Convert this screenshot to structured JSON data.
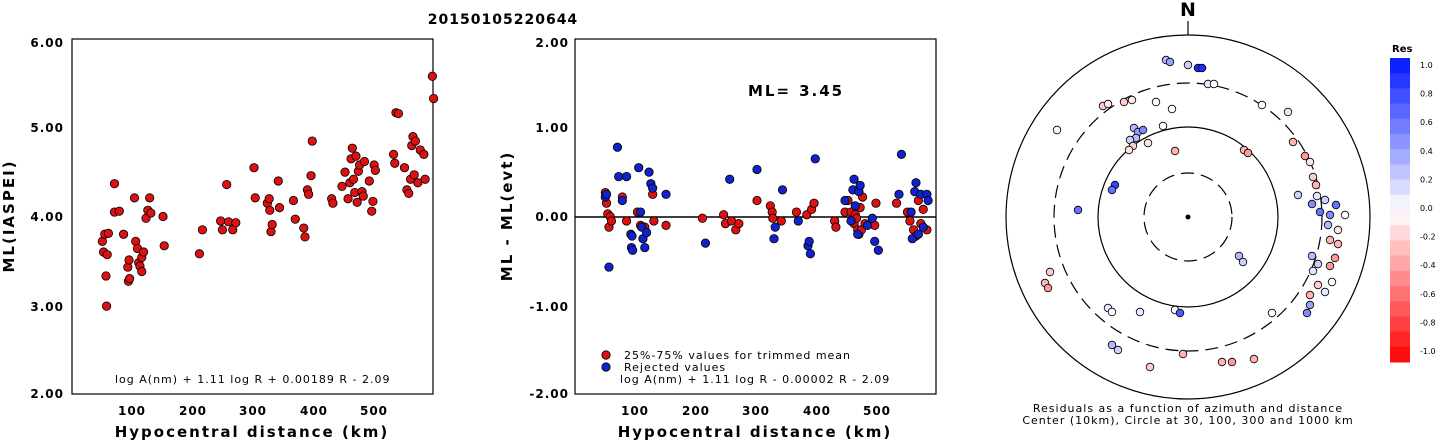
{
  "title": "20150105220644",
  "chart_data": [
    {
      "type": "scatter",
      "panel": "ml-vs-distance",
      "xlabel": "Hypocentral distance (km)",
      "ylabel": "ML(IASPEI)",
      "xlim": [
        0,
        595
      ],
      "ylim": [
        2.0,
        6.0
      ],
      "xticks": [
        "100",
        "200",
        "300",
        "400",
        "500"
      ],
      "yticks": [
        "2.00",
        "3.00",
        "4.00",
        "5.00",
        "6.00"
      ],
      "formula": "log A(nm) + 1.11 log R + 0.00189 R - 2.09",
      "color": "#dd1111",
      "points": [
        [
          50,
          3.72
        ],
        [
          52,
          3.6
        ],
        [
          54,
          3.8
        ],
        [
          56,
          3.33
        ],
        [
          57,
          2.99
        ],
        [
          58,
          3.57
        ],
        [
          60,
          3.81
        ],
        [
          70,
          4.37
        ],
        [
          70,
          4.05
        ],
        [
          78,
          4.06
        ],
        [
          85,
          3.8
        ],
        [
          92,
          3.43
        ],
        [
          93,
          3.27
        ],
        [
          94,
          3.51
        ],
        [
          95,
          3.3
        ],
        [
          103,
          4.21
        ],
        [
          105,
          3.72
        ],
        [
          108,
          3.64
        ],
        [
          110,
          3.48
        ],
        [
          112,
          3.44
        ],
        [
          115,
          3.38
        ],
        [
          115,
          3.54
        ],
        [
          118,
          3.6
        ],
        [
          122,
          3.98
        ],
        [
          125,
          4.07
        ],
        [
          128,
          4.21
        ],
        [
          130,
          4.04
        ],
        [
          150,
          4.0
        ],
        [
          152,
          3.67
        ],
        [
          210,
          3.58
        ],
        [
          215,
          3.85
        ],
        [
          245,
          3.95
        ],
        [
          248,
          3.85
        ],
        [
          255,
          4.36
        ],
        [
          258,
          3.94
        ],
        [
          265,
          3.85
        ],
        [
          270,
          3.93
        ],
        [
          300,
          4.55
        ],
        [
          302,
          4.21
        ],
        [
          322,
          4.15
        ],
        [
          325,
          4.2
        ],
        [
          326,
          4.07
        ],
        [
          328,
          3.83
        ],
        [
          330,
          3.91
        ],
        [
          340,
          4.4
        ],
        [
          342,
          4.1
        ],
        [
          365,
          4.18
        ],
        [
          368,
          3.97
        ],
        [
          382,
          3.87
        ],
        [
          384,
          3.77
        ],
        [
          388,
          4.3
        ],
        [
          390,
          4.25
        ],
        [
          394,
          4.46
        ],
        [
          396,
          4.85
        ],
        [
          428,
          4.2
        ],
        [
          430,
          4.15
        ],
        [
          445,
          4.34
        ],
        [
          450,
          4.5
        ],
        [
          455,
          4.2
        ],
        [
          458,
          4.38
        ],
        [
          460,
          4.65
        ],
        [
          462,
          4.77
        ],
        [
          464,
          4.42
        ],
        [
          466,
          4.27
        ],
        [
          468,
          4.68
        ],
        [
          470,
          4.16
        ],
        [
          472,
          4.51
        ],
        [
          474,
          4.58
        ],
        [
          478,
          4.28
        ],
        [
          480,
          4.23
        ],
        [
          482,
          4.62
        ],
        [
          490,
          4.4
        ],
        [
          494,
          4.06
        ],
        [
          496,
          4.17
        ],
        [
          498,
          4.58
        ],
        [
          500,
          4.52
        ],
        [
          530,
          4.7
        ],
        [
          532,
          4.6
        ],
        [
          534,
          5.17
        ],
        [
          538,
          5.16
        ],
        [
          548,
          4.55
        ],
        [
          552,
          4.3
        ],
        [
          555,
          4.26
        ],
        [
          558,
          4.42
        ],
        [
          560,
          4.8
        ],
        [
          562,
          4.9
        ],
        [
          564,
          4.47
        ],
        [
          566,
          4.85
        ],
        [
          570,
          4.38
        ],
        [
          574,
          4.75
        ],
        [
          580,
          4.7
        ],
        [
          582,
          4.42
        ],
        [
          594,
          5.58
        ],
        [
          596,
          5.33
        ]
      ]
    },
    {
      "type": "scatter",
      "panel": "residual-vs-distance",
      "xlabel": "Hypocentral distance (km)",
      "ylabel": "ML - ML(evt)",
      "xlim": [
        0,
        595
      ],
      "ylim": [
        -2.0,
        2.0
      ],
      "xticks": [
        "100",
        "200",
        "300",
        "400",
        "500"
      ],
      "yticks": [
        "-2.00",
        "-1.00",
        "0.00",
        "1.00",
        "2.00"
      ],
      "ml_label": "ML=",
      "ml_value": "3.45",
      "formula": "log A(nm) + 1.11 log R - 0.00002 R - 2.09",
      "legend": [
        {
          "label": "25%-75% values for trimmed mean",
          "color": "#dd1111"
        },
        {
          "label": "Rejected values",
          "color": "#1122cc"
        }
      ],
      "legend_position": "bottom-left",
      "red_points": [
        [
          50,
          0.27
        ],
        [
          52,
          0.15
        ],
        [
          54,
          0.03
        ],
        [
          56,
          -0.12
        ],
        [
          58,
          0.0
        ],
        [
          60,
          -0.05
        ],
        [
          78,
          0.22
        ],
        [
          85,
          -0.05
        ],
        [
          103,
          0.05
        ],
        [
          108,
          -0.1
        ],
        [
          115,
          -0.12
        ],
        [
          128,
          0.25
        ],
        [
          130,
          -0.05
        ],
        [
          150,
          -0.1
        ],
        [
          210,
          -0.02
        ],
        [
          245,
          0.02
        ],
        [
          248,
          -0.08
        ],
        [
          258,
          -0.05
        ],
        [
          265,
          -0.15
        ],
        [
          270,
          -0.08
        ],
        [
          300,
          0.18
        ],
        [
          322,
          0.12
        ],
        [
          325,
          0.05
        ],
        [
          326,
          -0.02
        ],
        [
          340,
          -0.05
        ],
        [
          365,
          0.05
        ],
        [
          382,
          0.02
        ],
        [
          390,
          0.08
        ],
        [
          394,
          0.15
        ],
        [
          428,
          -0.05
        ],
        [
          430,
          -0.12
        ],
        [
          445,
          0.05
        ],
        [
          450,
          0.18
        ],
        [
          455,
          0.05
        ],
        [
          460,
          -0.08
        ],
        [
          462,
          0.02
        ],
        [
          464,
          -0.02
        ],
        [
          466,
          -0.15
        ],
        [
          468,
          -0.2
        ],
        [
          470,
          0.1
        ],
        [
          472,
          -0.15
        ],
        [
          474,
          0.22
        ],
        [
          478,
          -0.08
        ],
        [
          494,
          -0.1
        ],
        [
          496,
          0.15
        ],
        [
          530,
          0.15
        ],
        [
          548,
          0.05
        ],
        [
          552,
          -0.05
        ],
        [
          558,
          -0.15
        ],
        [
          562,
          -0.22
        ],
        [
          566,
          0.18
        ],
        [
          570,
          -0.08
        ],
        [
          574,
          0.08
        ],
        [
          580,
          -0.15
        ]
      ],
      "blue_points": [
        [
          50,
          0.22
        ],
        [
          52,
          0.25
        ],
        [
          56,
          -0.57
        ],
        [
          70,
          0.78
        ],
        [
          72,
          0.45
        ],
        [
          78,
          0.18
        ],
        [
          85,
          0.45
        ],
        [
          92,
          -0.2
        ],
        [
          93,
          -0.35
        ],
        [
          94,
          -0.22
        ],
        [
          95,
          -0.38
        ],
        [
          105,
          0.55
        ],
        [
          108,
          0.05
        ],
        [
          110,
          -0.12
        ],
        [
          112,
          -0.25
        ],
        [
          115,
          -0.35
        ],
        [
          118,
          -0.18
        ],
        [
          122,
          0.5
        ],
        [
          125,
          0.37
        ],
        [
          128,
          0.32
        ],
        [
          150,
          0.25
        ],
        [
          215,
          -0.3
        ],
        [
          255,
          0.42
        ],
        [
          300,
          0.53
        ],
        [
          328,
          -0.25
        ],
        [
          330,
          -0.12
        ],
        [
          342,
          0.3
        ],
        [
          368,
          -0.05
        ],
        [
          384,
          -0.33
        ],
        [
          386,
          -0.28
        ],
        [
          388,
          -0.42
        ],
        [
          396,
          0.65
        ],
        [
          445,
          0.18
        ],
        [
          455,
          -0.05
        ],
        [
          458,
          0.3
        ],
        [
          460,
          0.42
        ],
        [
          462,
          0.12
        ],
        [
          466,
          -0.2
        ],
        [
          468,
          0.28
        ],
        [
          470,
          0.35
        ],
        [
          482,
          -0.1
        ],
        [
          490,
          -0.02
        ],
        [
          494,
          -0.28
        ],
        [
          500,
          -0.38
        ],
        [
          534,
          0.25
        ],
        [
          538,
          0.7
        ],
        [
          554,
          0.05
        ],
        [
          556,
          -0.25
        ],
        [
          560,
          0.28
        ],
        [
          562,
          0.38
        ],
        [
          566,
          -0.2
        ],
        [
          570,
          0.25
        ],
        [
          574,
          -0.12
        ],
        [
          580,
          0.25
        ],
        [
          582,
          0.18
        ]
      ]
    },
    {
      "type": "scatter",
      "panel": "azimuth-residuals",
      "north_label": "N",
      "caption_line1": "Residuals as a function of azimuth and distance",
      "caption_line2": "Center (10km), Circle at 30, 100, 300 and 1000 km",
      "colorbar_title": "Res",
      "colorbar_ticks": [
        "1.0",
        "0.8",
        "0.6",
        "0.4",
        "0.2",
        "0.0",
        "-0.2",
        "-0.4",
        "-0.6",
        "-0.8",
        "-1.0"
      ],
      "stations": [
        [
          1166,
          60,
          0.3
        ],
        [
          1170,
          62,
          0.4
        ],
        [
          1188,
          65,
          0.2
        ],
        [
          1198,
          68,
          0.9
        ],
        [
          1202,
          68,
          0.9
        ],
        [
          1208,
          84,
          0.1
        ],
        [
          1214,
          84,
          0.0
        ],
        [
          1103,
          106,
          -0.2
        ],
        [
          1108,
          104,
          -0.1
        ],
        [
          1124,
          102,
          -0.2
        ],
        [
          1132,
          100,
          -0.1
        ],
        [
          1156,
          102,
          0.0
        ],
        [
          1172,
          109,
          0.0
        ],
        [
          1262,
          105,
          0.0
        ],
        [
          1288,
          112,
          0.1
        ],
        [
          1057,
          130,
          0.0
        ],
        [
          1134,
          128,
          0.3
        ],
        [
          1138,
          132,
          0.4
        ],
        [
          1143,
          130,
          0.5
        ],
        [
          1136,
          138,
          0.3
        ],
        [
          1130,
          140,
          0.2
        ],
        [
          1133,
          146,
          -0.2
        ],
        [
          1129,
          150,
          -0.1
        ],
        [
          1148,
          143,
          -0.1
        ],
        [
          1163,
          126,
          0.0
        ],
        [
          1175,
          151,
          -0.3
        ],
        [
          1244,
          150,
          -0.3
        ],
        [
          1248,
          153,
          -0.4
        ],
        [
          1293,
          142,
          -0.3
        ],
        [
          1305,
          156,
          -0.4
        ],
        [
          1310,
          162,
          -0.1
        ],
        [
          1313,
          177,
          -0.2
        ],
        [
          1316,
          185,
          -0.3
        ],
        [
          1298,
          195,
          0.2
        ],
        [
          1115,
          185,
          0.8
        ],
        [
          1112,
          190,
          0.6
        ],
        [
          1078,
          210,
          0.6
        ],
        [
          1317,
          196,
          0.1
        ],
        [
          1325,
          200,
          0.2
        ],
        [
          1330,
          215,
          0.5
        ],
        [
          1336,
          205,
          0.6
        ],
        [
          1345,
          215,
          0.0
        ],
        [
          1312,
          204,
          0.5
        ],
        [
          1320,
          212,
          0.6
        ],
        [
          1328,
          225,
          0.3
        ],
        [
          1338,
          230,
          -0.1
        ],
        [
          1330,
          240,
          -0.3
        ],
        [
          1338,
          244,
          -0.3
        ],
        [
          1335,
          258,
          -0.4
        ],
        [
          1330,
          266,
          -0.4
        ],
        [
          1312,
          256,
          0.3
        ],
        [
          1318,
          264,
          0.2
        ],
        [
          1313,
          271,
          0.1
        ],
        [
          1318,
          285,
          -0.2
        ],
        [
          1310,
          295,
          -0.3
        ],
        [
          1325,
          292,
          0.1
        ],
        [
          1332,
          282,
          0.0
        ],
        [
          1310,
          305,
          0.4
        ],
        [
          1307,
          313,
          0.5
        ],
        [
          1239,
          256,
          0.3
        ],
        [
          1243,
          262,
          0.2
        ],
        [
          1050,
          272,
          -0.2
        ],
        [
          1045,
          283,
          -0.3
        ],
        [
          1048,
          288,
          -0.4
        ],
        [
          1108,
          308,
          0.1
        ],
        [
          1112,
          312,
          0.0
        ],
        [
          1140,
          312,
          0.1
        ],
        [
          1175,
          310,
          0.0
        ],
        [
          1180,
          313,
          0.7
        ],
        [
          1272,
          313,
          0.0
        ],
        [
          1112,
          345,
          0.3
        ],
        [
          1118,
          350,
          0.2
        ],
        [
          1183,
          354,
          -0.3
        ],
        [
          1222,
          362,
          -0.3
        ],
        [
          1232,
          362,
          -0.4
        ],
        [
          1254,
          359,
          -0.3
        ],
        [
          1150,
          367,
          -0.2
        ]
      ]
    }
  ]
}
